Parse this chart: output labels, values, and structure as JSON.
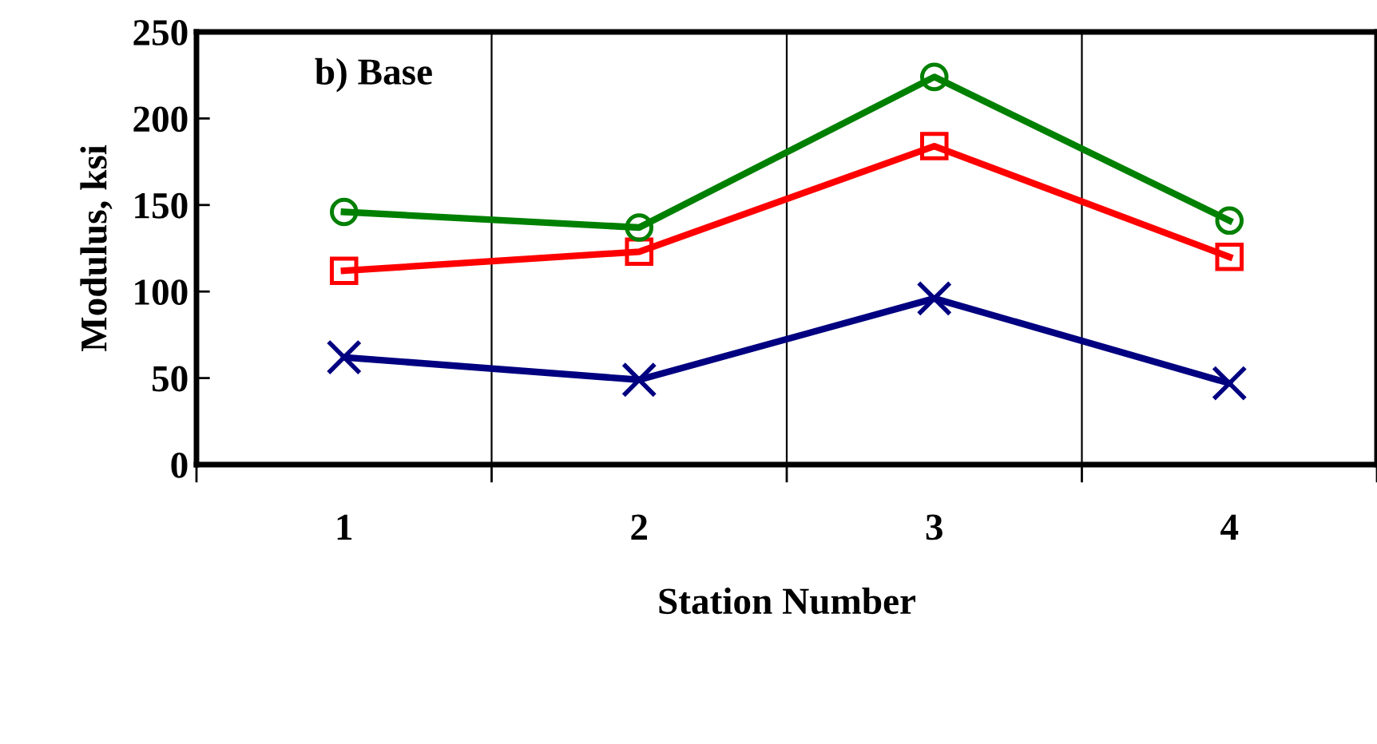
{
  "chart_data": {
    "type": "line",
    "xlabel": "Station Number",
    "ylabel": "Modulus, ksi",
    "annotations": [
      "b) Base"
    ],
    "categories": [
      "1",
      "2",
      "3",
      "4"
    ],
    "series": [
      {
        "color": "#000080",
        "marker": "cross",
        "values": [
          62,
          49,
          96,
          47
        ]
      },
      {
        "color": "#ff0000",
        "marker": "square",
        "values": [
          112,
          123,
          184,
          120
        ]
      },
      {
        "color": "#008000",
        "marker": "circle",
        "values": [
          146,
          137,
          224,
          141
        ]
      }
    ],
    "ylim": [
      0,
      250
    ],
    "yticks": [
      0,
      50,
      100,
      150,
      200,
      250
    ],
    "grid": "x"
  }
}
